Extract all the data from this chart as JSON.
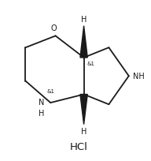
{
  "bg_color": "#ffffff",
  "line_color": "#1a1a1a",
  "line_width": 1.3,
  "font_size_label": 7.0,
  "font_size_hcl": 9.5,
  "font_size_stereo": 5.0,
  "hcl_text": "HCl",
  "label_O": "O",
  "label_NH_right": "NH",
  "label_NH_bottom": "N\nH",
  "label_H_top": "H",
  "label_H_bottom": "H",
  "stereo1": "&1",
  "stereo2": "&1",
  "fig_width": 1.92,
  "fig_height": 2.05,
  "dpi": 100
}
